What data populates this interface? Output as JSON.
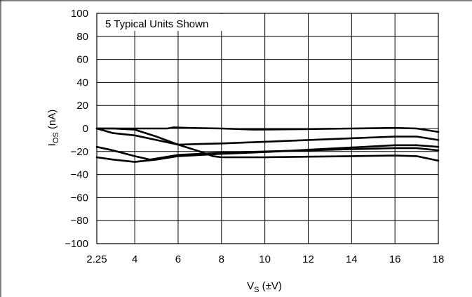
{
  "chart_data": {
    "type": "line",
    "annotation": "5 Typical Units Shown",
    "ylabel": {
      "main": "I",
      "sub": "OS",
      "rest": " (nA)"
    },
    "xlabel": {
      "main": "V",
      "sub": "S",
      "rest": " (±V)"
    },
    "xlim": [
      2.25,
      18
    ],
    "ylim": [
      -100,
      100
    ],
    "x_ticks": [
      2.25,
      4,
      6,
      8,
      10,
      12,
      14,
      16,
      18
    ],
    "x_tick_labels": [
      "2.25",
      "4",
      "6",
      "8",
      "10",
      "12",
      "14",
      "16",
      "18"
    ],
    "y_ticks": [
      100,
      80,
      60,
      40,
      20,
      0,
      -20,
      -40,
      -60,
      -80,
      -100
    ],
    "y_tick_labels": [
      "100",
      "80",
      "60",
      "40",
      "20",
      "0",
      "−20",
      "−40",
      "−60",
      "−80",
      "−100"
    ],
    "grid": true,
    "line_color": "#000000",
    "series": [
      {
        "points": [
          [
            2.25,
            0
          ],
          [
            3,
            0
          ],
          [
            4,
            0
          ],
          [
            5,
            0
          ],
          [
            5.5,
            0
          ],
          [
            5.8,
            1
          ],
          [
            6.5,
            0.5
          ],
          [
            8,
            0
          ],
          [
            9.5,
            -1
          ],
          [
            12,
            -0.5
          ],
          [
            14,
            0
          ],
          [
            16,
            0.5
          ],
          [
            17,
            0
          ],
          [
            18,
            -3
          ]
        ]
      },
      {
        "points": [
          [
            2.25,
            0
          ],
          [
            3,
            -4
          ],
          [
            4,
            -6
          ],
          [
            5,
            -10
          ],
          [
            6,
            -14
          ],
          [
            7,
            -13.5
          ],
          [
            8,
            -13
          ],
          [
            10,
            -11.5
          ],
          [
            12,
            -10
          ],
          [
            14,
            -8.5
          ],
          [
            16,
            -7
          ],
          [
            17,
            -7
          ],
          [
            18,
            -10
          ]
        ]
      },
      {
        "points": [
          [
            2.25,
            0
          ],
          [
            3,
            0
          ],
          [
            4,
            -1
          ],
          [
            5,
            -7
          ],
          [
            6,
            -14
          ],
          [
            7,
            -20
          ],
          [
            7.6,
            -24
          ],
          [
            8,
            -25
          ],
          [
            10,
            -25
          ],
          [
            12,
            -24.5
          ],
          [
            14,
            -24
          ],
          [
            16,
            -23.5
          ],
          [
            17,
            -24
          ],
          [
            18,
            -28
          ]
        ]
      },
      {
        "points": [
          [
            2.25,
            -16
          ],
          [
            3,
            -19
          ],
          [
            4,
            -24
          ],
          [
            4.7,
            -27
          ],
          [
            6,
            -23
          ],
          [
            8,
            -21
          ],
          [
            10,
            -20
          ],
          [
            12,
            -19
          ],
          [
            14,
            -18
          ],
          [
            16,
            -17
          ],
          [
            17,
            -17
          ],
          [
            18,
            -19
          ]
        ]
      },
      {
        "points": [
          [
            2.25,
            -25
          ],
          [
            3,
            -27
          ],
          [
            4,
            -29
          ],
          [
            5,
            -27
          ],
          [
            6,
            -24
          ],
          [
            8,
            -22
          ],
          [
            10,
            -20.5
          ],
          [
            12,
            -18.5
          ],
          [
            14,
            -16.5
          ],
          [
            16,
            -14.5
          ],
          [
            17,
            -14.5
          ],
          [
            18,
            -16
          ]
        ]
      }
    ]
  }
}
